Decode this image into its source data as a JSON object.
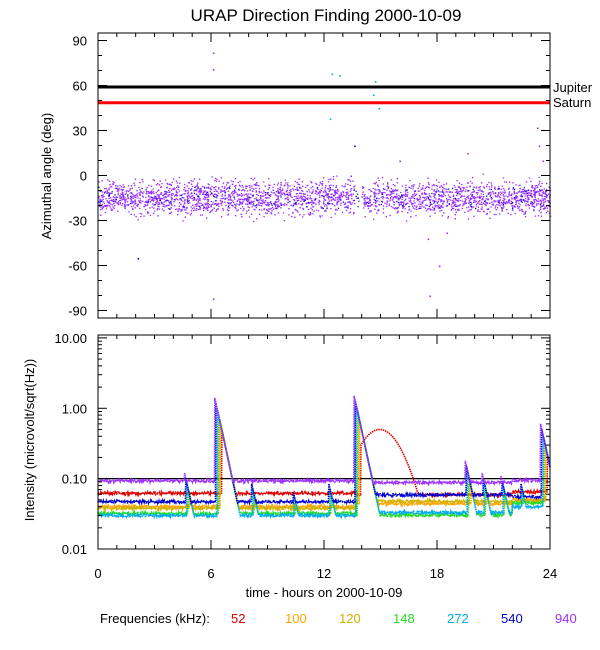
{
  "chart_data": {
    "title": "URAP Direction Finding  2000-10-09",
    "xlabel": "time - hours on 2000-10-09",
    "x_ticks": [
      "0",
      "6",
      "12",
      "18",
      "24"
    ],
    "xlim": [
      0,
      24
    ],
    "panels": [
      {
        "type": "scatter",
        "name": "azimuth",
        "ylabel": "Azimuthal angle (deg)",
        "ylim": [
          -95,
          95
        ],
        "y_ticks": [
          {
            "v": 90,
            "t": "90"
          },
          {
            "v": 60,
            "t": "60"
          },
          {
            "v": 30,
            "t": "30"
          },
          {
            "v": 0,
            "t": "0"
          },
          {
            "v": -30,
            "t": "-30"
          },
          {
            "v": -60,
            "t": "-60"
          },
          {
            "v": -90,
            "t": "-90"
          }
        ],
        "reference_lines": [
          {
            "name": "Jupiter",
            "value": 59,
            "color": "#000000"
          },
          {
            "name": "Saturn",
            "value": 48.5,
            "color": "#ff0000"
          }
        ],
        "band": {
          "center": -15,
          "spread": 8,
          "color": "#9b30ff",
          "gap": [
            13.6,
            14.0
          ]
        },
        "outliers": [
          {
            "x": 6.1,
            "y": 82,
            "c": "#9b30ff"
          },
          {
            "x": 6.1,
            "y": 71,
            "c": "#9b30ff"
          },
          {
            "x": 6.1,
            "y": -82,
            "c": "#9b30ff"
          },
          {
            "x": 2.1,
            "y": -55,
            "c": "#0000cc"
          },
          {
            "x": 12.4,
            "y": 68,
            "c": "#00aaee"
          },
          {
            "x": 12.8,
            "y": 67,
            "c": "#00aaee"
          },
          {
            "x": 12.3,
            "y": 38,
            "c": "#00aaee"
          },
          {
            "x": 13.6,
            "y": 20,
            "c": "#0000cc"
          },
          {
            "x": 13.4,
            "y": 0,
            "c": "#9b30ff"
          },
          {
            "x": 14.7,
            "y": 63,
            "c": "#00aaee"
          },
          {
            "x": 14.8,
            "y": 60,
            "c": "#00aaee"
          },
          {
            "x": 14.9,
            "y": 45,
            "c": "#00aaee"
          },
          {
            "x": 14.6,
            "y": 54,
            "c": "#00aaee"
          },
          {
            "x": 16.0,
            "y": 10,
            "c": "#9b30ff"
          },
          {
            "x": 17.5,
            "y": -42,
            "c": "#9b30ff"
          },
          {
            "x": 18.1,
            "y": -60,
            "c": "#9b30ff"
          },
          {
            "x": 17.6,
            "y": -80,
            "c": "#9b30ff"
          },
          {
            "x": 18.5,
            "y": -38,
            "c": "#9b30ff"
          },
          {
            "x": 19.6,
            "y": 15,
            "c": "#9b30ff"
          },
          {
            "x": 23.3,
            "y": 32,
            "c": "#9b30ff"
          },
          {
            "x": 23.4,
            "y": 20,
            "c": "#9b30ff"
          },
          {
            "x": 23.6,
            "y": 10,
            "c": "#9b30ff"
          }
        ]
      },
      {
        "type": "line",
        "name": "intensity",
        "ylabel": "Intensity (microvolt/sqrt(Hz))",
        "yscale": "log",
        "ylim": [
          0.01,
          11
        ],
        "y_ticks": [
          {
            "v": 10,
            "t": "10.00"
          },
          {
            "v": 1,
            "t": "1.00"
          },
          {
            "v": 0.1,
            "t": "0.10"
          },
          {
            "v": 0.01,
            "t": "0.01"
          }
        ],
        "reference_line": 0.1
      }
    ],
    "series": [
      {
        "freq": "52",
        "color": "#dd0000",
        "base": 0.062,
        "base2": 0.065
      },
      {
        "freq": "100",
        "color": "#ffa500",
        "base": 0.04,
        "base2": 0.05
      },
      {
        "freq": "120",
        "color": "#d4b000",
        "base": 0.038,
        "base2": 0.048
      },
      {
        "freq": "148",
        "color": "#22dd22",
        "base": 0.032,
        "base2": 0.045
      },
      {
        "freq": "272",
        "color": "#00aaee",
        "base": 0.03,
        "base2": 0.04
      },
      {
        "freq": "540",
        "color": "#0000cc",
        "base": 0.047,
        "base2": 0.055
      },
      {
        "freq": "940",
        "color": "#9b30ff",
        "base": 0.093,
        "base2": 0.095
      }
    ],
    "bursts": [
      {
        "t": 4.6,
        "amp": 0.12
      },
      {
        "t": 6.2,
        "amp": 1.4
      },
      {
        "t": 8.1,
        "amp": 0.1
      },
      {
        "t": 10.3,
        "amp": 0.08
      },
      {
        "t": 12.2,
        "amp": 0.1
      },
      {
        "t": 13.6,
        "amp": 1.5
      },
      {
        "t": 19.5,
        "amp": 0.18
      },
      {
        "t": 20.4,
        "amp": 0.12
      },
      {
        "t": 21.4,
        "amp": 0.11
      },
      {
        "t": 22.4,
        "amp": 0.1
      },
      {
        "t": 23.5,
        "amp": 0.6
      }
    ],
    "legend": {
      "label": "Frequencies (kHz):",
      "items": [
        "52",
        "100",
        "120",
        "148",
        "272",
        "540",
        "940"
      ]
    }
  }
}
